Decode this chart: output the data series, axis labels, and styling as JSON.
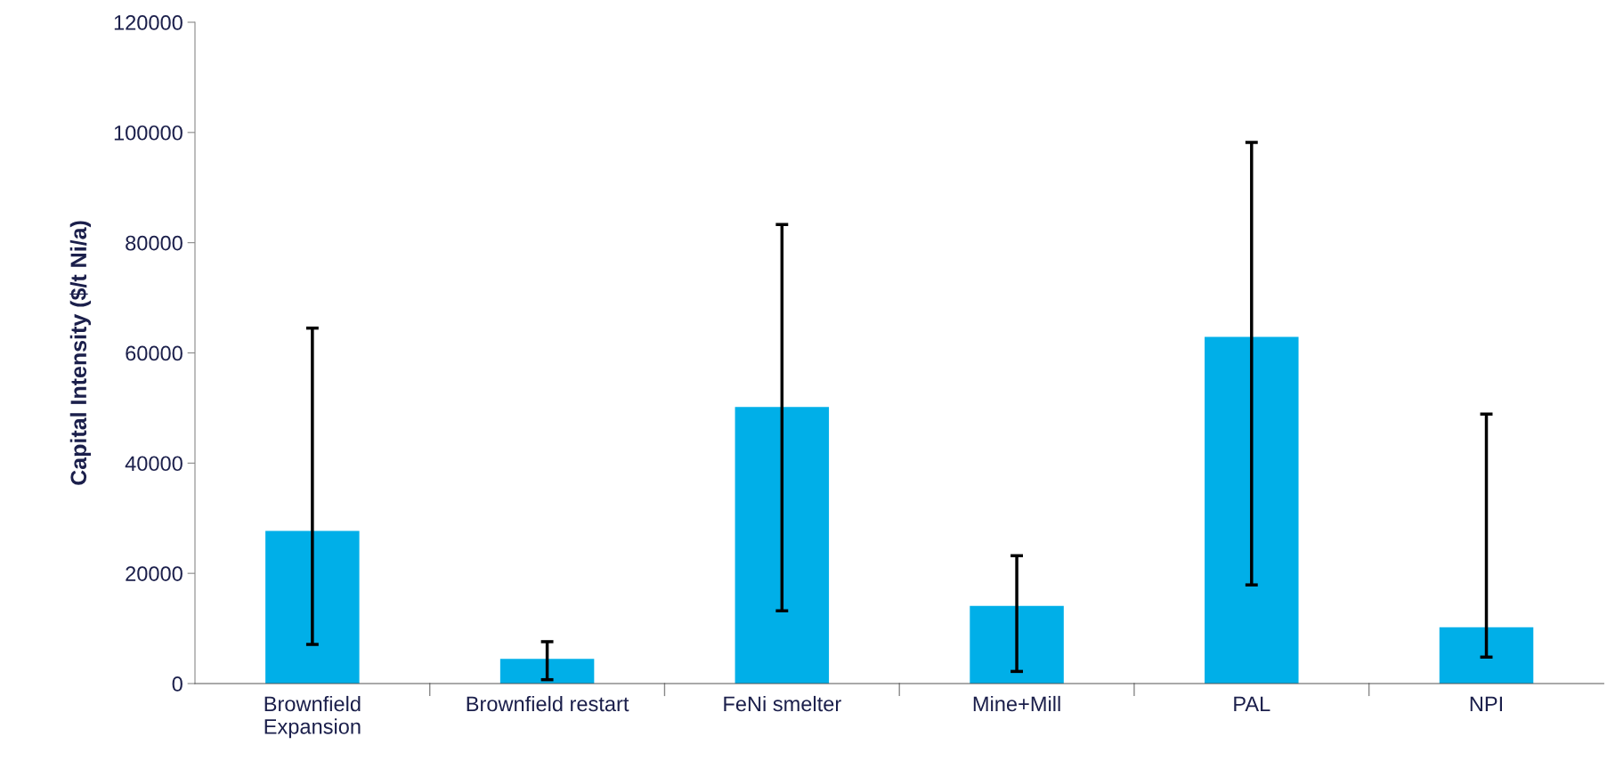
{
  "chart_data": {
    "type": "bar",
    "ylabel": "Capital Intensity ($/t Ni/a)",
    "categories": [
      "Brownfield\nExpansion",
      "Brownfield restart",
      "FeNi smelter",
      "Mine+Mill",
      "PAL",
      "NPI"
    ],
    "values": [
      27700,
      4500,
      50200,
      14100,
      62900,
      10200
    ],
    "errors": [
      [
        7100,
        64500
      ],
      [
        700,
        7600
      ],
      [
        13200,
        83300
      ],
      [
        2200,
        23200
      ],
      [
        17900,
        98200
      ],
      [
        4800,
        48900
      ]
    ],
    "color": "#00afe8",
    "ylim": [
      0,
      120000
    ],
    "yticks": [
      0,
      20000,
      40000,
      60000,
      80000,
      100000,
      120000
    ],
    "grid": false
  }
}
